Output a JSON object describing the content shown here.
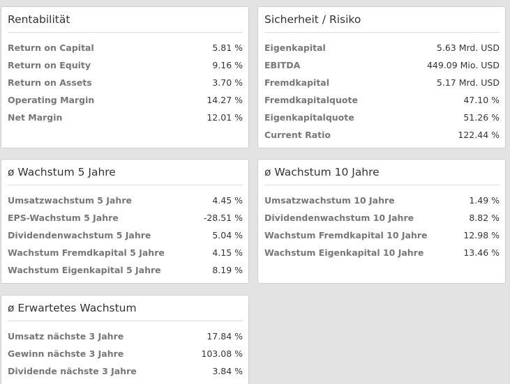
{
  "cards": {
    "rentabilitaet": {
      "title": "Rentabilität",
      "rows": [
        {
          "label": "Return on Capital",
          "value": "5.81 %"
        },
        {
          "label": "Return on Equity",
          "value": "9.16 %"
        },
        {
          "label": "Return on Assets",
          "value": "3.70 %"
        },
        {
          "label": "Operating Margin",
          "value": "14.27 %"
        },
        {
          "label": "Net Margin",
          "value": "12.01 %"
        }
      ]
    },
    "sicherheit": {
      "title": "Sicherheit / Risiko",
      "rows": [
        {
          "label": "Eigenkapital",
          "value": "5.63 Mrd. USD"
        },
        {
          "label": "EBITDA",
          "value": "449.09 Mio. USD"
        },
        {
          "label": "Fremdkapital",
          "value": "5.17 Mrd. USD"
        },
        {
          "label": "Fremdkapitalquote",
          "value": "47.10 %"
        },
        {
          "label": "Eigenkapitalquote",
          "value": "51.26 %"
        },
        {
          "label": "Current Ratio",
          "value": "122.44 %"
        }
      ]
    },
    "wachstum5": {
      "title": "ø Wachstum 5 Jahre",
      "rows": [
        {
          "label": "Umsatzwachstum 5 Jahre",
          "value": "4.45 %"
        },
        {
          "label": "EPS-Wachstum 5 Jahre",
          "value": "-28.51 %"
        },
        {
          "label": "Dividendenwachstum 5 Jahre",
          "value": "5.04 %"
        },
        {
          "label": "Wachstum Fremdkapital 5 Jahre",
          "value": "4.15 %"
        },
        {
          "label": "Wachstum Eigenkapital 5 Jahre",
          "value": "8.19 %"
        }
      ]
    },
    "wachstum10": {
      "title": "ø Wachstum 10 Jahre",
      "rows": [
        {
          "label": "Umsatzwachstum 10 Jahre",
          "value": "1.49 %"
        },
        {
          "label": "Dividendenwachstum 10 Jahre",
          "value": "8.82 %"
        },
        {
          "label": "Wachstum Fremdkapital 10 Jahre",
          "value": "12.98 %"
        },
        {
          "label": "Wachstum Eigenkapital 10 Jahre",
          "value": "13.46 %"
        }
      ]
    },
    "erwartet": {
      "title": "ø Erwartetes Wachstum",
      "rows": [
        {
          "label": "Umsatz nächste 3 Jahre",
          "value": "17.84 %"
        },
        {
          "label": "Gewinn nächste 3 Jahre",
          "value": "103.08 %"
        },
        {
          "label": "Dividende nächste 3 Jahre",
          "value": "3.84 %"
        }
      ]
    }
  }
}
